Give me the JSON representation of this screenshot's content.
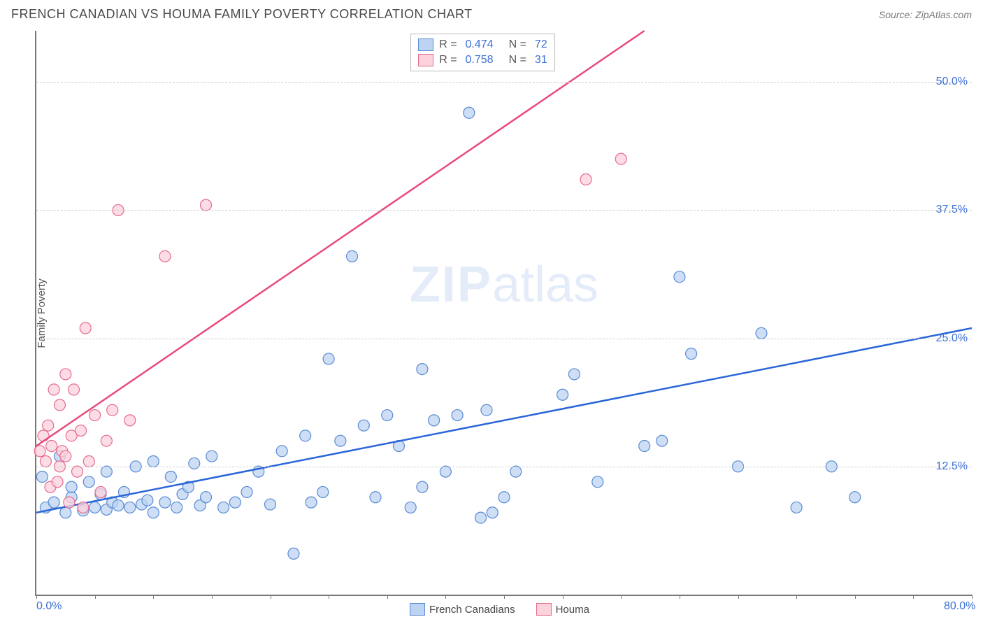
{
  "title": "FRENCH CANADIAN VS HOUMA FAMILY POVERTY CORRELATION CHART",
  "source_label": "Source:",
  "source_name": "ZipAtlas.com",
  "ylabel": "Family Poverty",
  "watermark_a": "ZIP",
  "watermark_b": "atlas",
  "chart": {
    "type": "scatter",
    "xlim": [
      0,
      80
    ],
    "ylim": [
      0,
      55
    ],
    "yticks": [
      {
        "v": 12.5,
        "label": "12.5%"
      },
      {
        "v": 25.0,
        "label": "25.0%"
      },
      {
        "v": 37.5,
        "label": "37.5%"
      },
      {
        "v": 50.0,
        "label": "50.0%"
      }
    ],
    "xticks_marks": [
      0,
      5,
      10,
      15,
      20,
      25,
      30,
      35,
      40,
      45,
      50,
      55,
      60,
      65,
      70,
      75,
      80
    ],
    "xtick_labels": [
      {
        "v": 0,
        "label": "0.0%"
      },
      {
        "v": 80,
        "label": "80.0%"
      }
    ],
    "background_color": "#ffffff",
    "grid_color": "#d0d0d0",
    "axis_color": "#777777",
    "marker_radius": 8,
    "marker_stroke_width": 1.2,
    "line_width": 2.5,
    "series": [
      {
        "name": "French Canadians",
        "color_fill": "#bcd3f2",
        "color_stroke": "#5a8bd6",
        "line_color": "#2b66d9",
        "R": "0.474",
        "N": "72",
        "trend": {
          "x1": 0,
          "y1": 8.0,
          "x2": 80,
          "y2": 26.0
        },
        "points": [
          [
            0.5,
            11.5
          ],
          [
            0.8,
            8.5
          ],
          [
            1.5,
            9.0
          ],
          [
            2.0,
            13.5
          ],
          [
            2.5,
            8.0
          ],
          [
            3.0,
            9.5
          ],
          [
            3.0,
            10.5
          ],
          [
            4.0,
            8.2
          ],
          [
            4.5,
            11.0
          ],
          [
            5.0,
            8.5
          ],
          [
            5.5,
            9.8
          ],
          [
            6.0,
            8.3
          ],
          [
            6.0,
            12.0
          ],
          [
            6.5,
            9.0
          ],
          [
            7.0,
            8.7
          ],
          [
            7.5,
            10.0
          ],
          [
            8.0,
            8.5
          ],
          [
            8.5,
            12.5
          ],
          [
            9.0,
            8.8
          ],
          [
            9.5,
            9.2
          ],
          [
            10.0,
            8.0
          ],
          [
            10.0,
            13.0
          ],
          [
            11.0,
            9.0
          ],
          [
            11.5,
            11.5
          ],
          [
            12.0,
            8.5
          ],
          [
            12.5,
            9.8
          ],
          [
            13.0,
            10.5
          ],
          [
            13.5,
            12.8
          ],
          [
            14.0,
            8.7
          ],
          [
            14.5,
            9.5
          ],
          [
            15.0,
            13.5
          ],
          [
            16.0,
            8.5
          ],
          [
            17.0,
            9.0
          ],
          [
            18.0,
            10.0
          ],
          [
            19.0,
            12.0
          ],
          [
            20.0,
            8.8
          ],
          [
            21.0,
            14.0
          ],
          [
            22.0,
            4.0
          ],
          [
            23.0,
            15.5
          ],
          [
            23.5,
            9.0
          ],
          [
            24.5,
            10.0
          ],
          [
            25.0,
            23.0
          ],
          [
            26.0,
            15.0
          ],
          [
            27.0,
            33.0
          ],
          [
            28.0,
            16.5
          ],
          [
            29.0,
            9.5
          ],
          [
            30.0,
            17.5
          ],
          [
            31.0,
            14.5
          ],
          [
            32.0,
            8.5
          ],
          [
            33.0,
            10.5
          ],
          [
            33.0,
            22.0
          ],
          [
            34.0,
            17.0
          ],
          [
            35.0,
            12.0
          ],
          [
            36.0,
            17.5
          ],
          [
            37.0,
            47.0
          ],
          [
            38.0,
            7.5
          ],
          [
            38.5,
            18.0
          ],
          [
            39.0,
            8.0
          ],
          [
            40.0,
            9.5
          ],
          [
            41.0,
            12.0
          ],
          [
            45.0,
            19.5
          ],
          [
            46.0,
            21.5
          ],
          [
            48.0,
            11.0
          ],
          [
            52.0,
            14.5
          ],
          [
            53.5,
            15.0
          ],
          [
            55.0,
            31.0
          ],
          [
            56.0,
            23.5
          ],
          [
            60.0,
            12.5
          ],
          [
            62.0,
            25.5
          ],
          [
            65.0,
            8.5
          ],
          [
            68.0,
            12.5
          ],
          [
            70.0,
            9.5
          ]
        ]
      },
      {
        "name": "Houma",
        "color_fill": "#fcd2dc",
        "color_stroke": "#e66a8e",
        "line_color": "#e94b7a",
        "R": "0.758",
        "N": "31",
        "trend": {
          "x1": 0,
          "y1": 14.5,
          "x2": 52,
          "y2": 55.0
        },
        "points": [
          [
            0.3,
            14.0
          ],
          [
            0.6,
            15.5
          ],
          [
            0.8,
            13.0
          ],
          [
            1.0,
            16.5
          ],
          [
            1.2,
            10.5
          ],
          [
            1.3,
            14.5
          ],
          [
            1.5,
            20.0
          ],
          [
            1.8,
            11.0
          ],
          [
            2.0,
            12.5
          ],
          [
            2.0,
            18.5
          ],
          [
            2.2,
            14.0
          ],
          [
            2.5,
            13.5
          ],
          [
            2.5,
            21.5
          ],
          [
            2.8,
            9.0
          ],
          [
            3.0,
            15.5
          ],
          [
            3.2,
            20.0
          ],
          [
            3.5,
            12.0
          ],
          [
            3.8,
            16.0
          ],
          [
            4.0,
            8.5
          ],
          [
            4.2,
            26.0
          ],
          [
            4.5,
            13.0
          ],
          [
            5.0,
            17.5
          ],
          [
            5.5,
            10.0
          ],
          [
            6.0,
            15.0
          ],
          [
            6.5,
            18.0
          ],
          [
            7.0,
            37.5
          ],
          [
            8.0,
            17.0
          ],
          [
            11.0,
            33.0
          ],
          [
            14.5,
            38.0
          ],
          [
            47.0,
            40.5
          ],
          [
            50.0,
            42.5
          ]
        ]
      }
    ]
  },
  "legend_series": [
    {
      "label": "French Canadians",
      "fill": "#bcd3f2",
      "stroke": "#5a8bd6"
    },
    {
      "label": "Houma",
      "fill": "#fcd2dc",
      "stroke": "#e66a8e"
    }
  ]
}
